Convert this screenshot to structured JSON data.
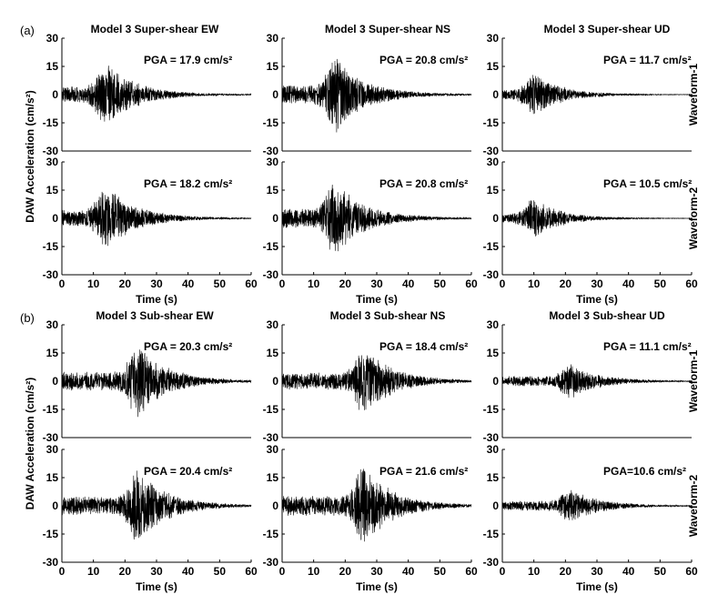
{
  "chart_data": {
    "type": "line",
    "sections": [
      {
        "label": "(a)",
        "ylabel": "DAW Acceleration (cm/s²)",
        "titles": [
          "Model 3 Super-shear EW",
          "Model 3 Super-shear NS",
          "Model 3 Super-shear UD"
        ],
        "pga": [
          [
            "PGA = 17.9 cm/s²",
            "PGA = 20.8 cm/s²",
            "PGA = 11.7 cm/s²"
          ],
          [
            "PGA = 18.2 cm/s²",
            "PGA = 20.8 cm/s²",
            "PGA = 10.5 cm/s²"
          ]
        ],
        "waveform_labels": [
          "Waveform-1",
          "Waveform-2"
        ],
        "peak_times": [
          [
            14,
            17,
            10
          ],
          [
            14,
            17,
            10
          ]
        ]
      },
      {
        "label": "(b)",
        "ylabel": "DAW Acceleration (cm/s²)",
        "titles": [
          "Model 3 Sub-shear EW",
          "Model 3 Sub-shear NS",
          "Model 3 Sub-shear UD"
        ],
        "pga": [
          [
            "PGA = 20.3 cm/s²",
            "PGA = 18.4 cm/s²",
            "PGA = 11.1 cm/s²"
          ],
          [
            "PGA = 20.4 cm/s²",
            "PGA = 21.6 cm/s²",
            "PGA=10.6 cm/s²"
          ]
        ],
        "waveform_labels": [
          "Waveform-1",
          "Waveform-2"
        ],
        "peak_times": [
          [
            24,
            26,
            22
          ],
          [
            24,
            26,
            22
          ]
        ]
      }
    ],
    "xlabel": "Time (s)",
    "xlim": [
      0,
      60
    ],
    "ylim": [
      -30,
      30
    ],
    "xticks": [
      0,
      10,
      20,
      30,
      40,
      50,
      60
    ],
    "yticks": [
      30,
      15,
      0,
      -15,
      -30
    ],
    "grid": false
  }
}
